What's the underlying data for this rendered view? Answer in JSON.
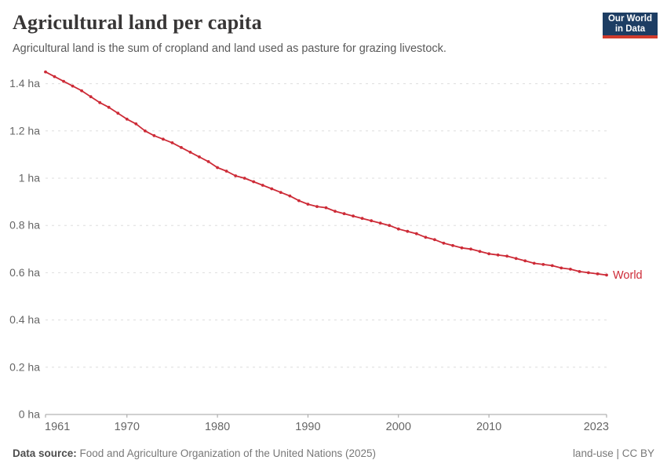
{
  "header": {
    "title": "Agricultural land per capita",
    "subtitle": "Agricultural land is the sum of cropland and land used as pasture for grazing livestock.",
    "logo": {
      "line1": "Our World",
      "line2": "in Data"
    }
  },
  "footer": {
    "source_label": "Data source:",
    "source_text": " Food and Agriculture Organization of the United Nations (2025)",
    "license": "land-use | CC BY"
  },
  "colors": {
    "line": "#cd2b37",
    "grid": "#dddddd",
    "axis": "#a1a1a1",
    "tick_text": "#666666",
    "logo_bg": "#1d3d63",
    "logo_bar": "#d13b2c"
  },
  "chart_data": {
    "type": "line",
    "title": "Agricultural land per capita",
    "unit": "ha",
    "grid": "horizontal dashed",
    "legend_position": "end-of-line label",
    "ylim": [
      0,
      1.45
    ],
    "yticks": [
      0,
      0.2,
      0.4,
      0.6,
      0.8,
      1.0,
      1.2,
      1.4
    ],
    "ytick_labels": [
      "0 ha",
      "0.2 ha",
      "0.4 ha",
      "0.6 ha",
      "0.8 ha",
      "1 ha",
      "1.2 ha",
      "1.4 ha"
    ],
    "xticks": [
      1961,
      1970,
      1980,
      1990,
      2000,
      2010,
      2023
    ],
    "x": [
      1961,
      1962,
      1963,
      1964,
      1965,
      1966,
      1967,
      1968,
      1969,
      1970,
      1971,
      1972,
      1973,
      1974,
      1975,
      1976,
      1977,
      1978,
      1979,
      1980,
      1981,
      1982,
      1983,
      1984,
      1985,
      1986,
      1987,
      1988,
      1989,
      1990,
      1991,
      1992,
      1993,
      1994,
      1995,
      1996,
      1997,
      1998,
      1999,
      2000,
      2001,
      2002,
      2003,
      2004,
      2005,
      2006,
      2007,
      2008,
      2009,
      2010,
      2011,
      2012,
      2013,
      2014,
      2015,
      2016,
      2017,
      2018,
      2019,
      2020,
      2021,
      2022,
      2023
    ],
    "series": [
      {
        "name": "World",
        "color": "#cd2b37",
        "values": [
          1.45,
          1.43,
          1.41,
          1.39,
          1.37,
          1.345,
          1.32,
          1.3,
          1.275,
          1.25,
          1.23,
          1.2,
          1.18,
          1.165,
          1.15,
          1.13,
          1.11,
          1.09,
          1.07,
          1.045,
          1.03,
          1.01,
          1.0,
          0.985,
          0.97,
          0.955,
          0.94,
          0.925,
          0.905,
          0.89,
          0.88,
          0.875,
          0.86,
          0.85,
          0.84,
          0.83,
          0.82,
          0.81,
          0.8,
          0.785,
          0.775,
          0.765,
          0.75,
          0.74,
          0.725,
          0.715,
          0.705,
          0.7,
          0.69,
          0.68,
          0.675,
          0.67,
          0.66,
          0.65,
          0.64,
          0.635,
          0.63,
          0.62,
          0.615,
          0.605,
          0.6,
          0.595,
          0.59
        ]
      }
    ],
    "end_label": "World"
  }
}
